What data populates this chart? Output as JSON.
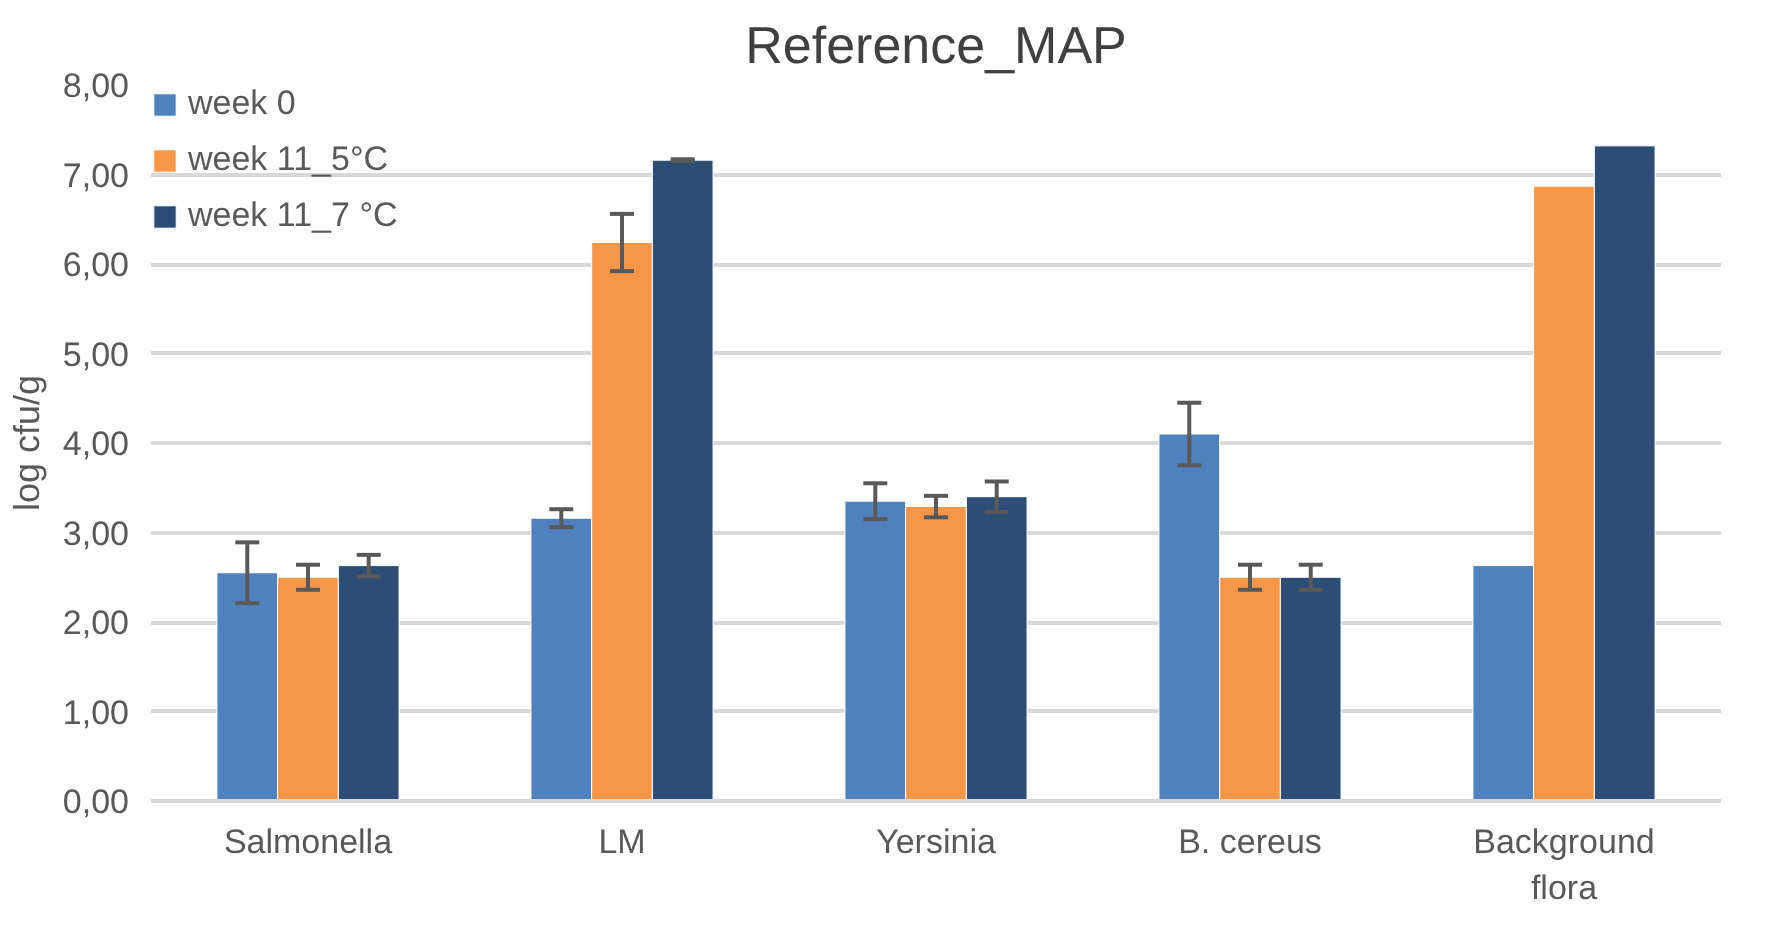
{
  "chart_data": {
    "type": "bar",
    "title": "Reference_MAP",
    "ylabel": "log cfu/g",
    "categories": [
      "Salmonella",
      "LM",
      "Yersinia",
      "B. cereus",
      "Background flora"
    ],
    "series": [
      {
        "name": "week 0",
        "color": "#4f81bd",
        "values": [
          2.55,
          3.16,
          3.35,
          4.1,
          2.63
        ],
        "errors": [
          0.34,
          0.1,
          0.2,
          0.35,
          null
        ]
      },
      {
        "name": "week 11_5°C",
        "color": "#f79646",
        "values": [
          2.5,
          6.24,
          3.29,
          2.5,
          6.87
        ],
        "errors": [
          0.14,
          0.32,
          0.12,
          0.14,
          null
        ]
      },
      {
        "name": "week 11_7 °C",
        "color": "#2c4d75",
        "values": [
          2.63,
          7.16,
          3.4,
          2.5,
          7.32
        ],
        "errors": [
          0.12,
          0.01,
          0.17,
          0.14,
          null
        ]
      }
    ],
    "ylim": [
      0,
      8
    ],
    "yticks": [
      {
        "value": 0,
        "label": "0,00"
      },
      {
        "value": 1,
        "label": "1,00"
      },
      {
        "value": 2,
        "label": "2,00"
      },
      {
        "value": 3,
        "label": "3,00"
      },
      {
        "value": 4,
        "label": "4,00"
      },
      {
        "value": 5,
        "label": "5,00"
      },
      {
        "value": 6,
        "label": "6,00"
      },
      {
        "value": 7,
        "label": "7,00"
      },
      {
        "value": 8,
        "label": "8,00"
      }
    ],
    "grid": "y",
    "legend": "top left"
  }
}
